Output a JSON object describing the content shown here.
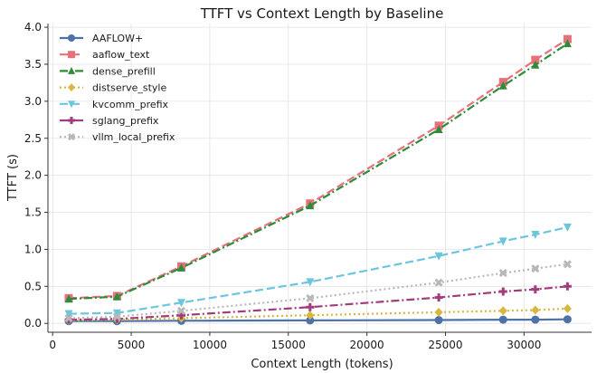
{
  "chart_data": {
    "type": "line",
    "title": "TTFT vs Context Length by Baseline",
    "xlabel": "Context Length (tokens)",
    "ylabel": "TTFT (s)",
    "xlim": [
      -300,
      34300
    ],
    "ylim": [
      -0.12,
      4.05
    ],
    "xticks": [
      0,
      5000,
      10000,
      15000,
      20000,
      25000,
      30000
    ],
    "yticks": [
      0.0,
      0.5,
      1.0,
      1.5,
      2.0,
      2.5,
      3.0,
      3.5,
      4.0
    ],
    "xtick_labels": [
      "0",
      "5000",
      "10000",
      "15000",
      "20000",
      "25000",
      "30000"
    ],
    "ytick_labels": [
      "0.0",
      "0.5",
      "1.0",
      "1.5",
      "2.0",
      "2.5",
      "3.0",
      "3.5",
      "4.0"
    ],
    "grid": true,
    "legend_position": "top-left",
    "x": [
      1024,
      4096,
      8192,
      16384,
      24576,
      28672,
      30720,
      32768
    ],
    "series": [
      {
        "name": "AAFLOW+",
        "color": "#4c72a8",
        "marker": "circle",
        "dash": "solid",
        "values": [
          0.03,
          0.03,
          0.035,
          0.04,
          0.045,
          0.05,
          0.05,
          0.055
        ]
      },
      {
        "name": "aaflow_text",
        "color": "#e8707a",
        "marker": "square",
        "dash": "dash",
        "values": [
          0.34,
          0.37,
          0.77,
          1.62,
          2.67,
          3.26,
          3.56,
          3.84
        ]
      },
      {
        "name": "dense_prefill",
        "color": "#2e8b3a",
        "marker": "triangle-up",
        "dash": "dashdot",
        "values": [
          0.33,
          0.36,
          0.75,
          1.59,
          2.62,
          3.21,
          3.49,
          3.78
        ]
      },
      {
        "name": "distserve_style",
        "color": "#d9b63f",
        "marker": "diamond",
        "dash": "dot",
        "values": [
          0.04,
          0.05,
          0.07,
          0.11,
          0.15,
          0.17,
          0.18,
          0.2
        ]
      },
      {
        "name": "kvcomm_prefix",
        "color": "#6cc6dd",
        "marker": "triangle-down",
        "dash": "dash",
        "values": [
          0.13,
          0.14,
          0.28,
          0.56,
          0.91,
          1.11,
          1.2,
          1.3
        ]
      },
      {
        "name": "sglang_prefix",
        "color": "#a33c7d",
        "marker": "plus",
        "dash": "dashdot",
        "values": [
          0.05,
          0.06,
          0.11,
          0.22,
          0.35,
          0.43,
          0.46,
          0.5
        ]
      },
      {
        "name": "vllm_local_prefix",
        "color": "#b8b8b8",
        "marker": "x",
        "dash": "dot",
        "values": [
          0.07,
          0.09,
          0.17,
          0.34,
          0.55,
          0.68,
          0.74,
          0.8
        ]
      }
    ]
  }
}
